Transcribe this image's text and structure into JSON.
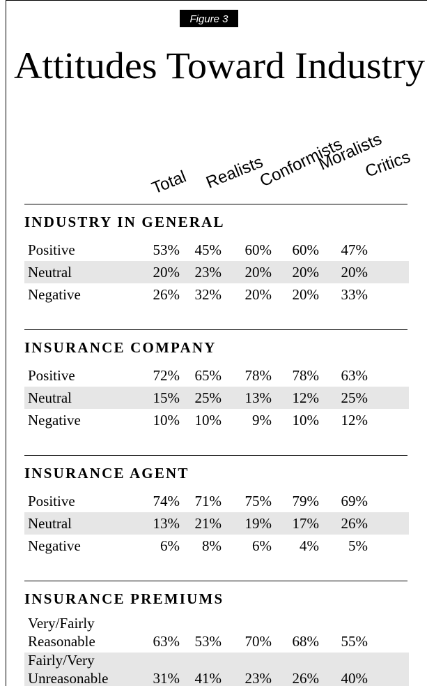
{
  "figure_label": "Figure 3",
  "title": "Attitudes Toward Industry",
  "columns": [
    "Total",
    "Realists",
    "Conformists",
    "Moralists",
    "Critics"
  ],
  "sections": [
    {
      "heading": "INDUSTRY IN GENERAL",
      "rows": [
        {
          "label": "Positive",
          "values": [
            "53%",
            "45%",
            "60%",
            "60%",
            "47%"
          ]
        },
        {
          "label": "Neutral",
          "values": [
            "20%",
            "23%",
            "20%",
            "20%",
            "20%"
          ]
        },
        {
          "label": "Negative",
          "values": [
            "26%",
            "32%",
            "20%",
            "20%",
            "33%"
          ]
        }
      ]
    },
    {
      "heading": "INSURANCE COMPANY",
      "rows": [
        {
          "label": "Positive",
          "values": [
            "72%",
            "65%",
            "78%",
            "78%",
            "63%"
          ]
        },
        {
          "label": "Neutral",
          "values": [
            "15%",
            "25%",
            "13%",
            "12%",
            "25%"
          ]
        },
        {
          "label": "Negative",
          "values": [
            "10%",
            "10%",
            "9%",
            "10%",
            "12%"
          ]
        }
      ]
    },
    {
      "heading": "INSURANCE AGENT",
      "rows": [
        {
          "label": "Positive",
          "values": [
            "74%",
            "71%",
            "75%",
            "79%",
            "69%"
          ]
        },
        {
          "label": "Neutral",
          "values": [
            "13%",
            "21%",
            "19%",
            "17%",
            "26%"
          ]
        },
        {
          "label": "Negative",
          "values": [
            "6%",
            "8%",
            "6%",
            "4%",
            "5%"
          ]
        }
      ]
    },
    {
      "heading": "INSURANCE PREMIUMS",
      "rows": [
        {
          "label": [
            "Very/Fairly",
            "Reasonable"
          ],
          "values": [
            "63%",
            "53%",
            "70%",
            "68%",
            "55%"
          ]
        },
        {
          "label": [
            "Fairly/Very",
            "Unreasonable"
          ],
          "values": [
            "31%",
            "41%",
            "23%",
            "26%",
            "40%"
          ]
        }
      ]
    }
  ]
}
